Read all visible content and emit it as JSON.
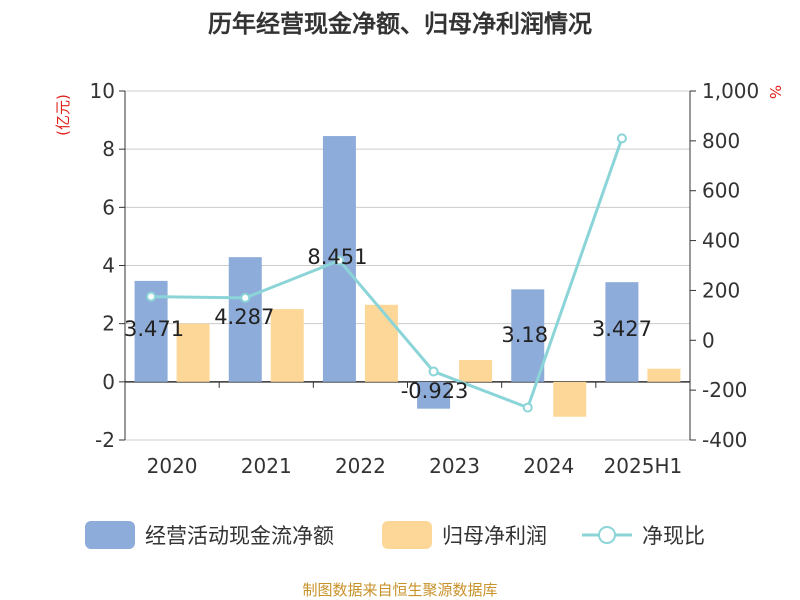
{
  "chart_data": {
    "type": "bar",
    "title": "历年经营现金净额、归母净利润情况",
    "categories": [
      "2020",
      "2021",
      "2022",
      "2023",
      "2024",
      "2025H1"
    ],
    "series": [
      {
        "name": "经营活动现金流净额",
        "type": "bar",
        "axis": "left",
        "color": "#8eacd9",
        "values": [
          3.471,
          4.287,
          8.451,
          -0.923,
          3.18,
          3.427
        ],
        "labels_shown": true
      },
      {
        "name": "归母净利润",
        "type": "bar",
        "axis": "left",
        "color": "#fdd797",
        "values": [
          2.0,
          2.5,
          2.65,
          0.75,
          -1.2,
          0.45
        ],
        "labels_shown": false
      },
      {
        "name": "净现比",
        "type": "line",
        "axis": "right",
        "color": "#8bd4d8",
        "values": [
          175,
          170,
          320,
          -125,
          -270,
          810
        ],
        "labels_shown": false
      }
    ],
    "y_left": {
      "unit": "(亿元)",
      "min": -2,
      "max": 10,
      "ticks": [
        -2,
        0,
        2,
        4,
        6,
        8,
        10
      ]
    },
    "y_right": {
      "unit": "%",
      "min": -400,
      "max": 1000,
      "ticks": [
        -400,
        -200,
        0,
        200,
        400,
        600,
        800,
        1000
      ],
      "tick_labels": [
        "-400",
        "-200",
        "0",
        "200",
        "400",
        "600",
        "800",
        "1,000"
      ]
    },
    "grid": true,
    "legend_position": "bottom"
  },
  "source_text": "制图数据来自恒生聚源数据库"
}
